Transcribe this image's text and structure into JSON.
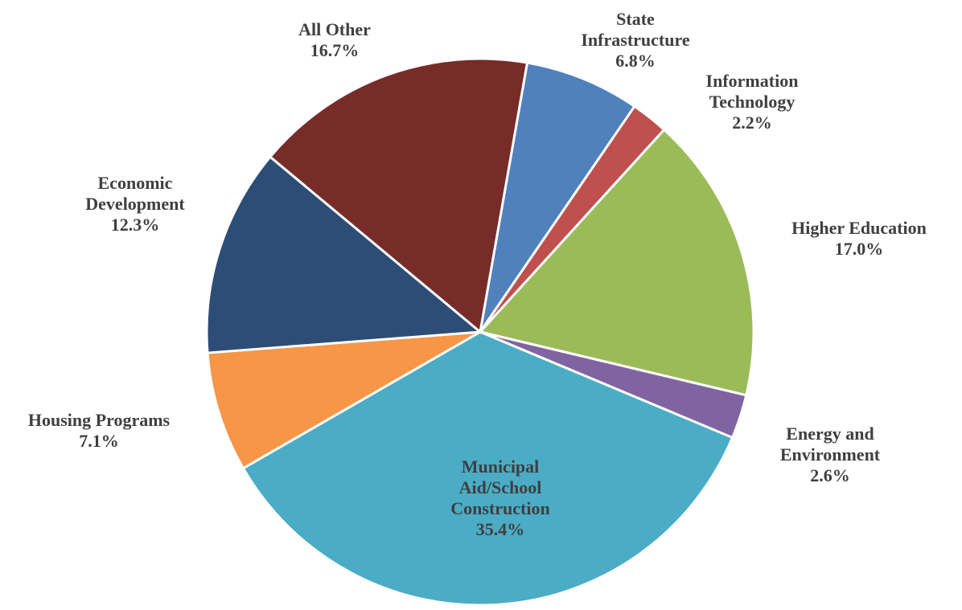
{
  "chart_data": {
    "type": "pie",
    "categories": [
      "State Infrastructure",
      "Information Technology",
      "Higher Education",
      "Energy and Environment",
      "Municipal Aid/School Construction",
      "Housing Programs",
      "Economic Development",
      "All Other"
    ],
    "values": [
      6.8,
      2.2,
      17.0,
      2.6,
      35.4,
      7.1,
      12.3,
      16.7
    ],
    "value_labels": [
      "6.8%",
      "2.2%",
      "17.0%",
      "2.6%",
      "35.4%",
      "7.1%",
      "12.3%",
      "16.7%"
    ],
    "colors": [
      "#4f81bd",
      "#c0504d",
      "#9bbb59",
      "#8064a2",
      "#4bacc6",
      "#f79646",
      "#2c4d75",
      "#772c2a"
    ]
  }
}
